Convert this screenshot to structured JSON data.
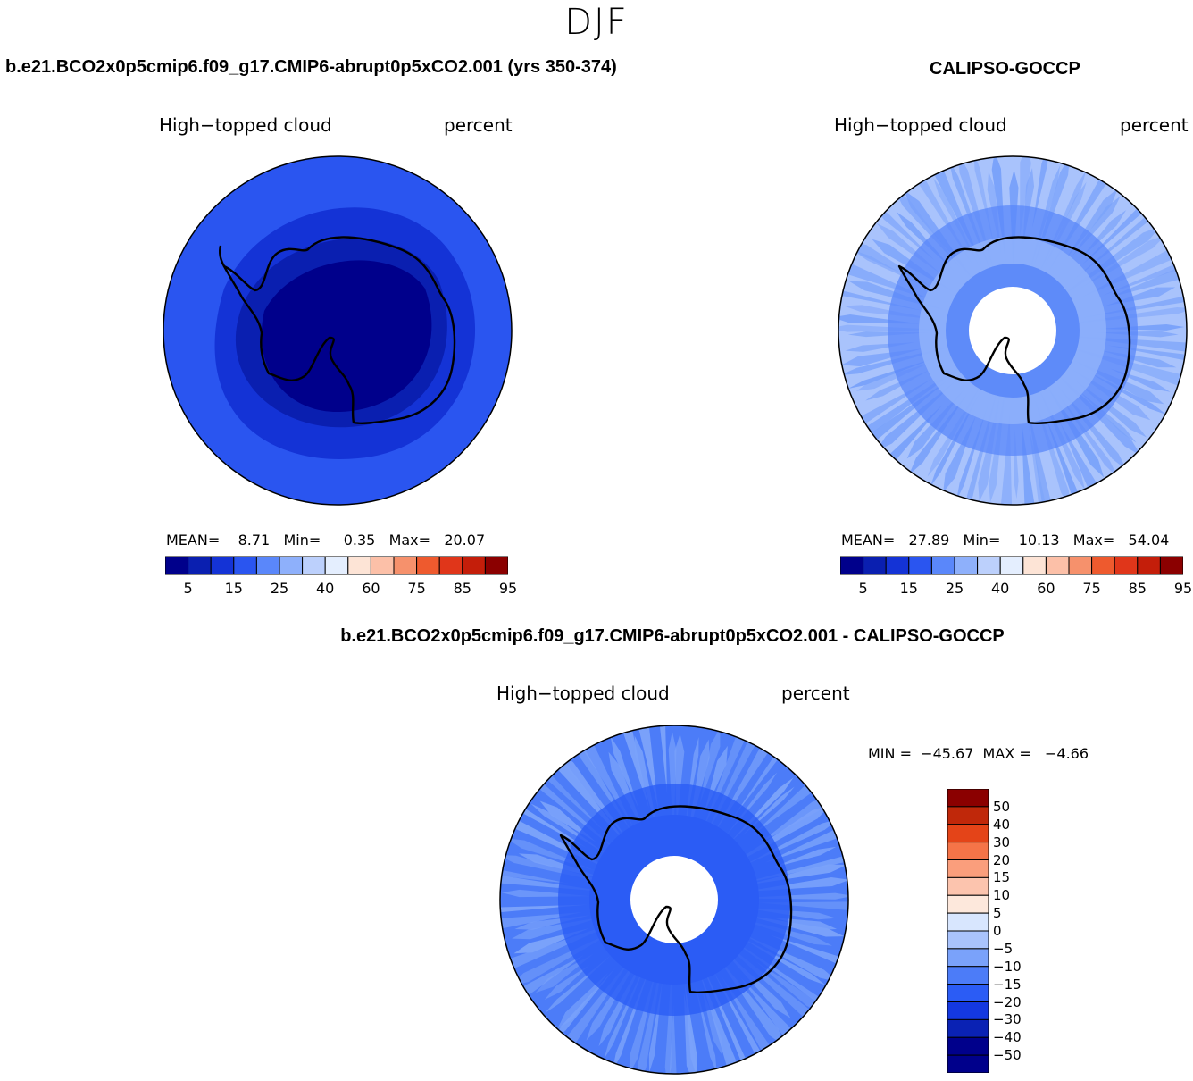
{
  "season": "DJF",
  "panels": [
    {
      "title": "b.e21.BCO2x0p5cmip6.f09_g17.CMIP6-abrupt0p5xCO2.001 (yrs 350-374)",
      "variable": "High−topped cloud",
      "units": "percent",
      "stats": "MEAN=    8.71   Min=     0.35   Max=   20.07",
      "mean": 8.71,
      "min": 0.35,
      "max": 20.07
    },
    {
      "title": "CALIPSO-GOCCP",
      "variable": "High−topped cloud",
      "units": "percent",
      "stats": "MEAN=   27.89   Min=    10.13   Max=   54.04",
      "mean": 27.89,
      "min": 10.13,
      "max": 54.04
    },
    {
      "title": "b.e21.BCO2x0p5cmip6.f09_g17.CMIP6-abrupt0p5xCO2.001 - CALIPSO-GOCCP",
      "variable": "High−topped cloud",
      "units": "percent",
      "stats": "MIN =  −45.67  MAX =   −4.66",
      "min": -45.67,
      "max": -4.66
    }
  ],
  "abs_colorbar": {
    "colors": [
      "#00008b",
      "#0a1fb0",
      "#1433d6",
      "#2a55f0",
      "#5a87fa",
      "#8eb0fb",
      "#bcd0fc",
      "#e4eefe",
      "#fde4d6",
      "#fcc0a8",
      "#f6916c",
      "#ee5a2e",
      "#e0361a",
      "#c41e0a",
      "#8b0000"
    ],
    "tick_labels": [
      "5",
      "15",
      "25",
      "40",
      "60",
      "75",
      "85",
      "95"
    ]
  },
  "diff_colorbar": {
    "colors": [
      "#00008b",
      "#0a22b4",
      "#1438e0",
      "#2b5cf5",
      "#4c7cf8",
      "#7aa2fa",
      "#a9c3fc",
      "#d8e6fe",
      "#fde8dc",
      "#fcc4ae",
      "#fa9e7c",
      "#f57448",
      "#e44418",
      "#c0280a",
      "#8b0000"
    ],
    "tick_labels": [
      "−50",
      "−40",
      "−30",
      "−20",
      "−15",
      "−10",
      "−5",
      "0",
      "5",
      "10",
      "15",
      "20",
      "30",
      "40",
      "50"
    ]
  }
}
